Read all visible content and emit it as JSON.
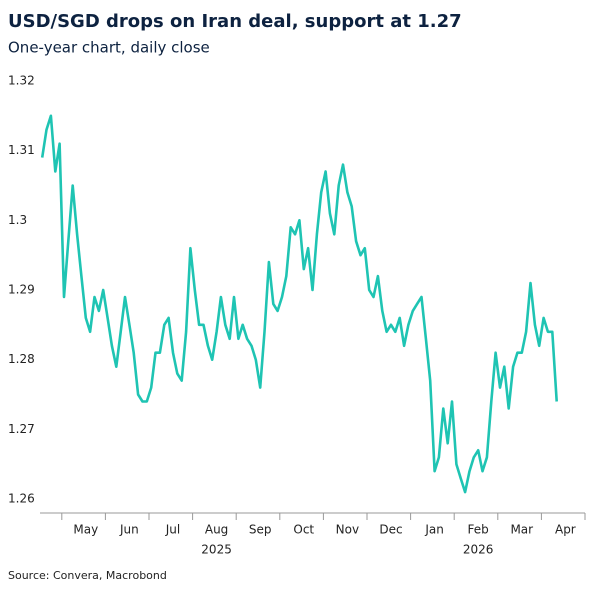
{
  "chart_data": {
    "type": "line",
    "title": "USD/SGD drops on Iran deal, support at 1.27",
    "subtitle": "One-year chart, daily close",
    "source": "Source: Convera, Macrobond",
    "categories": [
      null,
      null,
      null,
      null,
      null,
      null,
      null,
      null,
      null,
      null,
      "May",
      null,
      null,
      null,
      null,
      null,
      null,
      null,
      null,
      null,
      "Jun",
      null,
      null,
      null,
      null,
      null,
      null,
      null,
      null,
      null,
      "Jul",
      null,
      null,
      null,
      null,
      null,
      null,
      null,
      null,
      null,
      "Aug",
      null,
      null,
      null,
      null,
      null,
      null,
      null,
      null,
      null,
      "Sep",
      null,
      null,
      null,
      null,
      null,
      null,
      null,
      null,
      null,
      "Oct",
      null,
      null,
      null,
      null,
      null,
      null,
      null,
      null,
      null,
      "Nov",
      null,
      null,
      null,
      null,
      null,
      null,
      null,
      null,
      null,
      "Dec",
      null,
      null,
      null,
      null,
      null,
      null,
      null,
      null,
      null,
      "Jan",
      null,
      null,
      null,
      null,
      null,
      null,
      null,
      null,
      null,
      "Feb",
      null,
      null,
      null,
      null,
      null,
      null,
      null,
      null,
      null,
      "Mar",
      null,
      null,
      null,
      null,
      null,
      null,
      null,
      null,
      null,
      "Apr",
      null,
      null,
      null,
      null
    ],
    "years": [
      "2025",
      "2026"
    ],
    "series": [
      {
        "name": "USD/SGD",
        "color": "#1fc4b3",
        "values": [
          1.309,
          1.313,
          1.315,
          1.307,
          1.311,
          1.289,
          1.297,
          1.305,
          1.298,
          1.292,
          1.286,
          1.284,
          1.289,
          1.287,
          1.29,
          1.286,
          1.282,
          1.279,
          1.284,
          1.289,
          1.285,
          1.281,
          1.275,
          1.274,
          1.274,
          1.276,
          1.281,
          1.281,
          1.285,
          1.286,
          1.281,
          1.278,
          1.277,
          1.284,
          1.296,
          1.29,
          1.285,
          1.285,
          1.282,
          1.28,
          1.284,
          1.289,
          1.285,
          1.283,
          1.289,
          1.283,
          1.285,
          1.283,
          1.282,
          1.28,
          1.276,
          1.284,
          1.294,
          1.288,
          1.287,
          1.289,
          1.292,
          1.299,
          1.298,
          1.3,
          1.293,
          1.296,
          1.29,
          1.298,
          1.304,
          1.307,
          1.301,
          1.298,
          1.305,
          1.308,
          1.304,
          1.302,
          1.297,
          1.295,
          1.296,
          1.29,
          1.289,
          1.292,
          1.287,
          1.284,
          1.285,
          1.284,
          1.286,
          1.282,
          1.285,
          1.287,
          1.288,
          1.289,
          1.283,
          1.277,
          1.264,
          1.266,
          1.273,
          1.268,
          1.274,
          1.265,
          1.263,
          1.261,
          1.264,
          1.266,
          1.267,
          1.264,
          1.266,
          1.274,
          1.281,
          1.276,
          1.279,
          1.273,
          1.279,
          1.281,
          1.281,
          1.284,
          1.291,
          1.285,
          1.282,
          1.286,
          1.284,
          1.284,
          1.274,
          null,
          null,
          null,
          null,
          null,
          null
        ]
      }
    ],
    "ylim": [
      1.258,
      1.322
    ],
    "yticks": [
      1.26,
      1.27,
      1.28,
      1.29,
      1.3,
      {
        "value": 1.31,
        "label": "1.31"
      },
      1.32
    ],
    "grid": false
  }
}
